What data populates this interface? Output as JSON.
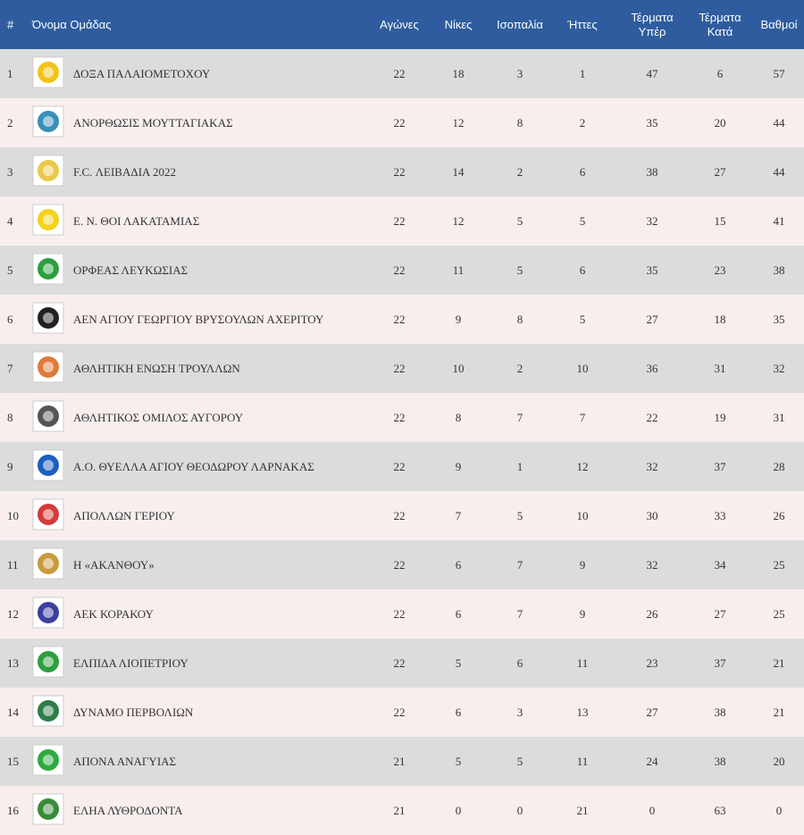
{
  "headers": {
    "pos": "#",
    "team": "Όνομα Ομάδας",
    "played": "Αγώνες",
    "wins": "Νίκες",
    "draws": "Ισοπαλία",
    "losses": "Ήττες",
    "goals_for_1": "Τέρματα",
    "goals_for_2": "Υπέρ",
    "goals_against_1": "Τέρματα",
    "goals_against_2": "Κατά",
    "points": "Βαθμοί"
  },
  "rows": [
    {
      "pos": "1",
      "team": "ΔΟΞΑ ΠΑΛΑΙΟΜΕΤΟΧΟΥ",
      "played": "22",
      "wins": "18",
      "draws": "3",
      "losses": "1",
      "gf": "47",
      "ga": "6",
      "pts": "57",
      "logo": "doxa-logo",
      "color": "#f2c318"
    },
    {
      "pos": "2",
      "team": "ΑΝΟΡΘΩΣΙΣ ΜΟΥΤΤΑΓΙΑΚΑΣ",
      "played": "22",
      "wins": "12",
      "draws": "8",
      "losses": "2",
      "gf": "35",
      "ga": "20",
      "pts": "44",
      "logo": "anorthosis-logo",
      "color": "#3a8fb7"
    },
    {
      "pos": "3",
      "team": "F.C. ΛΕΙΒΑΔΙΑ 2022",
      "played": "22",
      "wins": "14",
      "draws": "2",
      "losses": "6",
      "gf": "38",
      "ga": "27",
      "pts": "44",
      "logo": "livadia-logo",
      "color": "#e9c94a"
    },
    {
      "pos": "4",
      "team": "Ε. Ν. ΘΟΙ ΛΑΚΑΤΑΜΙΑΣ",
      "played": "22",
      "wins": "12",
      "draws": "5",
      "losses": "5",
      "gf": "32",
      "ga": "15",
      "pts": "41",
      "logo": "thoi-logo",
      "color": "#f4d21c"
    },
    {
      "pos": "5",
      "team": "ΟΡΦΕΑΣ ΛΕΥΚΩΣΙΑΣ",
      "played": "22",
      "wins": "11",
      "draws": "5",
      "losses": "6",
      "gf": "35",
      "ga": "23",
      "pts": "38",
      "logo": "orfeas-logo",
      "color": "#2e9e3e"
    },
    {
      "pos": "6",
      "team": "ΑΕΝ ΑΓΙΟΥ ΓΕΩΡΓΙΟΥ ΒΡΥΣΟΥΛΩΝ ΑΧΕΡΙΤΟΥ",
      "played": "22",
      "wins": "9",
      "draws": "8",
      "losses": "5",
      "gf": "27",
      "ga": "18",
      "pts": "35",
      "logo": "aen-logo",
      "color": "#222222"
    },
    {
      "pos": "7",
      "team": "ΑΘΛΗΤΙΚΗ ΕΝΩΣΗ ΤΡΟΥΛΛΩΝ",
      "played": "22",
      "wins": "10",
      "draws": "2",
      "losses": "10",
      "gf": "36",
      "ga": "31",
      "pts": "32",
      "logo": "troulloi-logo",
      "color": "#e07a3a"
    },
    {
      "pos": "8",
      "team": "ΑΘΛΗΤΙΚΟΣ ΟΜΙΛΟΣ ΑΥΓΟΡΟΥ",
      "played": "22",
      "wins": "8",
      "draws": "7",
      "losses": "7",
      "gf": "22",
      "ga": "19",
      "pts": "31",
      "logo": "avgorou-logo",
      "color": "#555555"
    },
    {
      "pos": "9",
      "team": "Α.Ο. ΘΥΕΛΛΑ ΑΓΙΟΥ ΘΕΟΔΩΡΟΥ ΛΑΡΝΑΚΑΣ",
      "played": "22",
      "wins": "9",
      "draws": "1",
      "losses": "12",
      "gf": "32",
      "ga": "37",
      "pts": "28",
      "logo": "thyella-logo",
      "color": "#1d5fbf"
    },
    {
      "pos": "10",
      "team": "ΑΠΟΛΛΩΝ ΓΕΡΙΟΥ",
      "played": "22",
      "wins": "7",
      "draws": "5",
      "losses": "10",
      "gf": "30",
      "ga": "33",
      "pts": "26",
      "logo": "apollon-logo",
      "color": "#d23b3b"
    },
    {
      "pos": "11",
      "team": "Η «ΑΚΑΝΘΟΥ»",
      "played": "22",
      "wins": "6",
      "draws": "7",
      "losses": "9",
      "gf": "32",
      "ga": "34",
      "pts": "25",
      "logo": "akanthou-logo",
      "color": "#c79a3c"
    },
    {
      "pos": "12",
      "team": "ΑΕΚ ΚΟΡΑΚΟΥ",
      "played": "22",
      "wins": "6",
      "draws": "7",
      "losses": "9",
      "gf": "26",
      "ga": "27",
      "pts": "25",
      "logo": "aek-korakou-logo",
      "color": "#3b3f9e"
    },
    {
      "pos": "13",
      "team": "ΕΛΠΙΔΑ ΛΙΟΠΕΤΡΙΟΥ",
      "played": "22",
      "wins": "5",
      "draws": "6",
      "losses": "11",
      "gf": "23",
      "ga": "37",
      "pts": "21",
      "logo": "elpida-logo",
      "color": "#2e9e3e"
    },
    {
      "pos": "14",
      "team": "ΔΥΝΑΜΟ ΠΕΡΒΟΛΙΩΝ",
      "played": "22",
      "wins": "6",
      "draws": "3",
      "losses": "13",
      "gf": "27",
      "ga": "38",
      "pts": "21",
      "logo": "dynamo-logo",
      "color": "#2f7d4a"
    },
    {
      "pos": "15",
      "team": "ΑΠΟΝΑ ΑΝΑΓΥΙΑΣ",
      "played": "21",
      "wins": "5",
      "draws": "5",
      "losses": "11",
      "gf": "24",
      "ga": "38",
      "pts": "20",
      "logo": "apona-logo",
      "color": "#2eaa3e"
    },
    {
      "pos": "16",
      "team": "ΕΛΗΑ ΛΥΘΡΟΔΟΝΤΑ",
      "played": "21",
      "wins": "0",
      "draws": "0",
      "losses": "21",
      "gf": "0",
      "ga": "63",
      "pts": "0",
      "logo": "elia-logo",
      "color": "#3a8a3a"
    }
  ]
}
